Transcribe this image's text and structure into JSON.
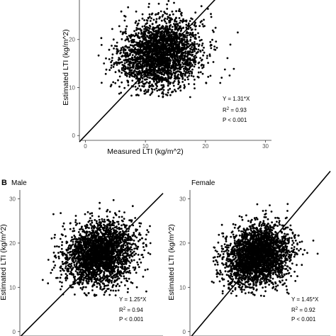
{
  "chart_data": [
    {
      "type": "scatter",
      "panel_label": "",
      "title": "",
      "xlabel": "Measured LTI (kg/m^2)",
      "ylabel": "Estimated LTI (kg/m^2)",
      "xlim": [
        -1,
        31
      ],
      "ylim": [
        -1,
        30
      ],
      "xticks": [
        0,
        10,
        20,
        30
      ],
      "yticks": [
        0,
        10,
        20
      ],
      "grid": false,
      "fit_line": {
        "slope": 1.31,
        "intercept": 0
      },
      "cloud": {
        "center_x": 12.5,
        "center_y": 17,
        "sd_x": 3.4,
        "sd_y": 3.6,
        "x_range": [
          2,
          29
        ],
        "y_range": [
          8,
          30
        ]
      },
      "annotation": {
        "eq": "Y = 1.31*X",
        "r2_prefix": "R",
        "r2_sup": "2",
        "r2_value": " = 0.93",
        "p": "P < 0.001"
      }
    },
    {
      "type": "scatter",
      "panel_label": "B",
      "title": "Male",
      "xlabel": "",
      "ylabel": "Estimated LTI (kg/m^2)",
      "xlim": [
        -1,
        25
      ],
      "ylim": [
        -1,
        32
      ],
      "xticks": [],
      "yticks": [
        0,
        10,
        20,
        30
      ],
      "grid": false,
      "fit_line": {
        "slope": 1.25,
        "intercept": 0
      },
      "cloud": {
        "center_x": 13.5,
        "center_y": 17.5,
        "sd_x": 3.2,
        "sd_y": 3.6,
        "x_range": [
          3,
          23
        ],
        "y_range": [
          8,
          30
        ]
      },
      "annotation": {
        "eq": "Y = 1.25*X",
        "r2_prefix": "R",
        "r2_sup": "2",
        "r2_value": " = 0.94",
        "p": "P < 0.001"
      }
    },
    {
      "type": "scatter",
      "panel_label": "",
      "title": "Female",
      "xlabel": "",
      "ylabel": "Estimated LTI (kg/m^2)",
      "xlim": [
        -1,
        25
      ],
      "ylim": [
        -1,
        32
      ],
      "xticks": [],
      "yticks": [
        0,
        10,
        20,
        30
      ],
      "grid": false,
      "fit_line": {
        "slope": 1.45,
        "intercept": 0
      },
      "cloud": {
        "center_x": 11.5,
        "center_y": 17,
        "sd_x": 3.0,
        "sd_y": 3.5,
        "x_range": [
          3,
          23
        ],
        "y_range": [
          8,
          30
        ]
      },
      "annotation": {
        "eq": "Y = 1.45*X",
        "r2_prefix": "R",
        "r2_sup": "2",
        "r2_value": " = 0.92",
        "p": "P < 0.001"
      }
    }
  ]
}
